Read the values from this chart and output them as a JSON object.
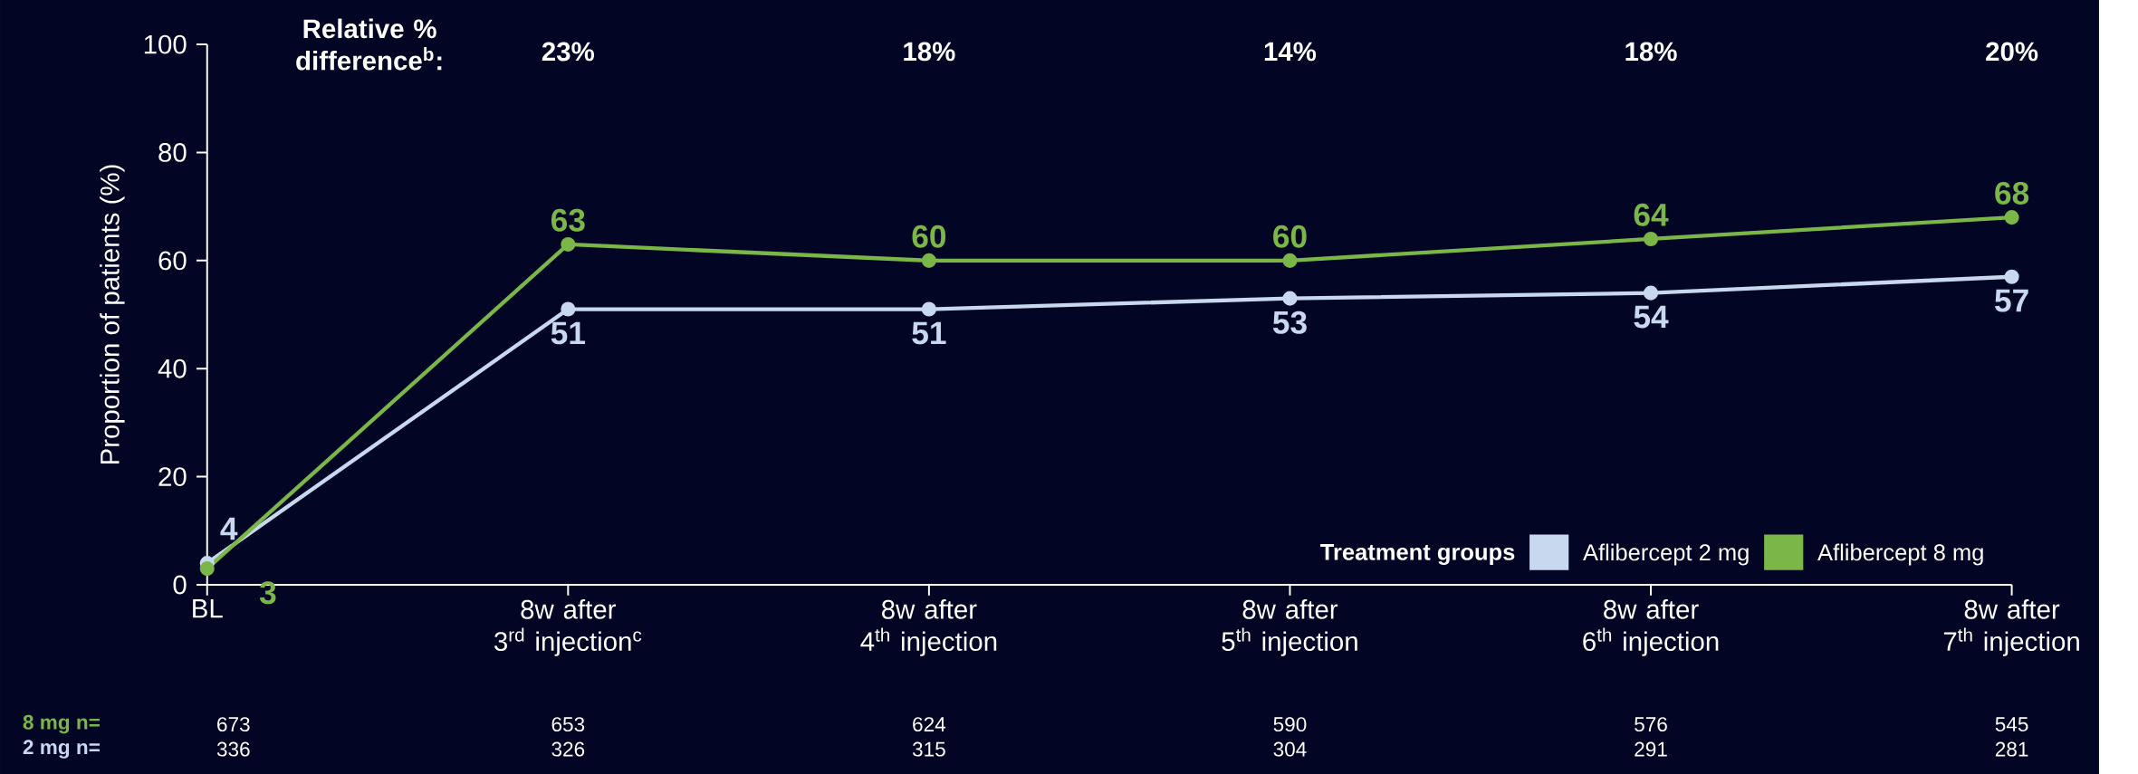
{
  "chart_data": {
    "type": "line",
    "ylabel": "Proportion of patients (%)",
    "legend_title": "Treatment groups",
    "categories": [
      "BL",
      "8w after 3$^{rd}$ injection$^{c}$",
      "8w after 4$^{th}$ injection",
      "8w after 5$^{th}$ injection",
      "8w after 6$^{th}$ injection",
      "8w after 7$^{th}$ injection"
    ],
    "series": [
      {
        "name": "Aflibercept 2 mg",
        "color": "#c8d8ee",
        "values": [
          4,
          51,
          51,
          53,
          54,
          57
        ]
      },
      {
        "name": "Aflibercept 8 mg",
        "color": "#7ab648",
        "values": [
          3,
          63,
          60,
          60,
          64,
          68
        ]
      }
    ],
    "ylim": [
      0,
      100
    ],
    "yticks": [
      0,
      20,
      40,
      60,
      80,
      100
    ],
    "grid": false,
    "legend": "bottom right",
    "marker": "circle",
    "line_style": "solid",
    "data_labels": true,
    "annotations": [
      "Relative % difference$^{b}$:",
      "23%",
      "18%",
      "14%",
      "18%",
      "20%",
      "8 mg n=",
      "673",
      "653",
      "624",
      "590",
      "576",
      "545",
      "2 mg n=",
      "336",
      "326",
      "315",
      "304",
      "291",
      "281"
    ]
  }
}
